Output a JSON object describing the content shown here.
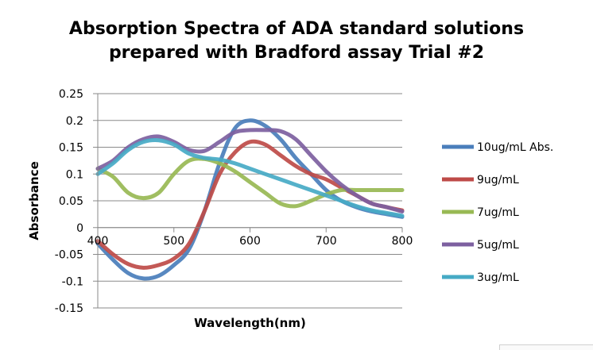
{
  "chart_data": {
    "type": "line",
    "title_lines": [
      "Absorption Spectra of ADA standard solutions",
      "prepared with Bradford assay Trial #2"
    ],
    "xlabel": "Wavelength(nm)",
    "ylabel": "Absorbance",
    "xlim": [
      400,
      800
    ],
    "ylim": [
      -0.15,
      0.25
    ],
    "xticks": [
      400,
      500,
      600,
      700,
      800
    ],
    "yticks": [
      -0.15,
      -0.1,
      -0.05,
      0,
      0.05,
      0.1,
      0.15,
      0.2,
      0.25
    ],
    "xtick_labels": [
      "400",
      "500",
      "600",
      "700",
      "800"
    ],
    "ytick_labels": [
      "-0.15",
      "-0.1",
      "-0.05",
      "0",
      "0.05",
      "0.1",
      "0.15",
      "0.2",
      "0.25"
    ],
    "grid": true,
    "legend_position": "right",
    "series": [
      {
        "name": "10ug/mL Abs.",
        "color": "#4a7ebb",
        "x": [
          400,
          420,
          440,
          460,
          480,
          500,
          520,
          540,
          560,
          580,
          600,
          620,
          640,
          660,
          680,
          700,
          720,
          740,
          760,
          780,
          800
        ],
        "values": [
          -0.03,
          -0.06,
          -0.085,
          -0.095,
          -0.09,
          -0.07,
          -0.04,
          0.03,
          0.12,
          0.185,
          0.2,
          0.19,
          0.165,
          0.13,
          0.1,
          0.07,
          0.05,
          0.038,
          0.03,
          0.025,
          0.02
        ]
      },
      {
        "name": "9ug/mL",
        "color": "#be4b48",
        "x": [
          400,
          420,
          440,
          460,
          480,
          500,
          520,
          540,
          560,
          580,
          600,
          620,
          640,
          660,
          680,
          700,
          720,
          740,
          760,
          780,
          800
        ],
        "values": [
          -0.025,
          -0.05,
          -0.068,
          -0.075,
          -0.07,
          -0.058,
          -0.03,
          0.03,
          0.1,
          0.14,
          0.16,
          0.155,
          0.135,
          0.115,
          0.1,
          0.09,
          0.075,
          0.06,
          0.045,
          0.038,
          0.032
        ]
      },
      {
        "name": "7ug/mL",
        "color": "#98b954",
        "x": [
          400,
          420,
          440,
          460,
          480,
          500,
          520,
          540,
          560,
          580,
          600,
          620,
          640,
          660,
          680,
          700,
          720,
          740,
          760,
          780,
          800
        ],
        "values": [
          0.11,
          0.095,
          0.065,
          0.055,
          0.065,
          0.1,
          0.125,
          0.128,
          0.12,
          0.105,
          0.085,
          0.065,
          0.045,
          0.04,
          0.05,
          0.062,
          0.07,
          0.07,
          0.07,
          0.07,
          0.07
        ]
      },
      {
        "name": "5ug/mL",
        "color": "#7d60a0",
        "x": [
          400,
          420,
          440,
          460,
          480,
          500,
          520,
          540,
          560,
          580,
          600,
          620,
          640,
          660,
          680,
          700,
          720,
          740,
          760,
          780,
          800
        ],
        "values": [
          0.11,
          0.125,
          0.15,
          0.165,
          0.17,
          0.16,
          0.145,
          0.143,
          0.16,
          0.178,
          0.182,
          0.182,
          0.18,
          0.165,
          0.135,
          0.105,
          0.08,
          0.06,
          0.045,
          0.038,
          0.03
        ]
      },
      {
        "name": "3ug/mL",
        "color": "#46aac5",
        "x": [
          400,
          420,
          440,
          460,
          480,
          500,
          520,
          540,
          560,
          580,
          600,
          620,
          640,
          660,
          680,
          700,
          720,
          740,
          760,
          780,
          800
        ],
        "values": [
          0.1,
          0.12,
          0.145,
          0.16,
          0.163,
          0.155,
          0.138,
          0.13,
          0.127,
          0.12,
          0.11,
          0.1,
          0.09,
          0.08,
          0.07,
          0.06,
          0.05,
          0.04,
          0.032,
          0.027,
          0.022
        ]
      }
    ]
  }
}
